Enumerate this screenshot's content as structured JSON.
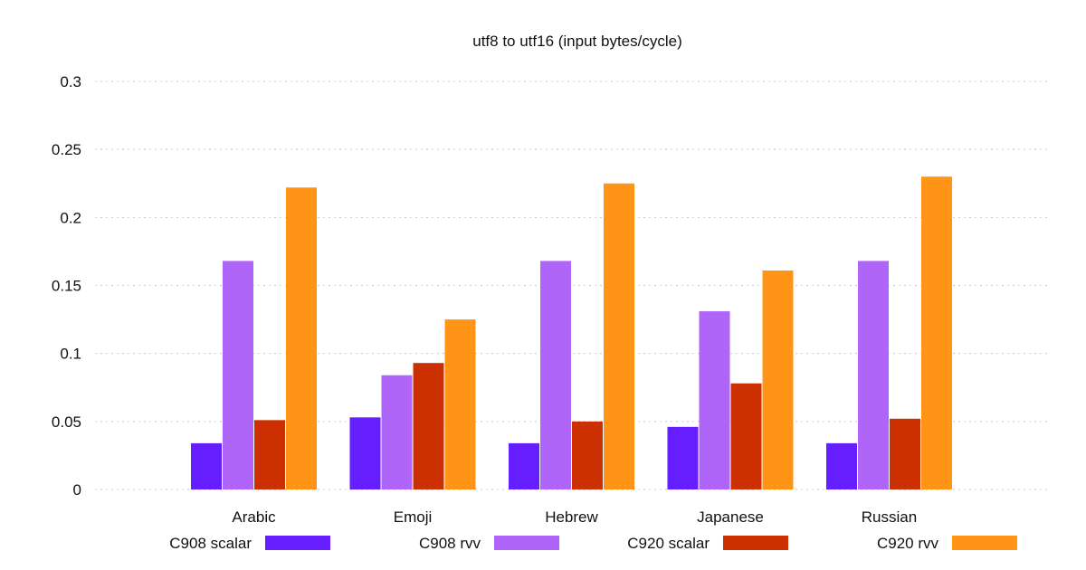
{
  "chart_data": {
    "type": "bar",
    "title": "utf8 to utf16 (input bytes/cycle)",
    "xlabel": "",
    "ylabel": "",
    "categories": [
      "Arabic",
      "Emoji",
      "Hebrew",
      "Japanese",
      "Russian"
    ],
    "series": [
      {
        "name": "C908 scalar",
        "color": "#651fff",
        "values": [
          0.034,
          0.053,
          0.034,
          0.046,
          0.034
        ]
      },
      {
        "name": "C908 rvv",
        "color": "#b065f9",
        "values": [
          0.168,
          0.084,
          0.168,
          0.131,
          0.168
        ]
      },
      {
        "name": "C920 scalar",
        "color": "#cc3000",
        "values": [
          0.051,
          0.093,
          0.05,
          0.078,
          0.052
        ]
      },
      {
        "name": "C920 rvv",
        "color": "#ff9417",
        "values": [
          0.222,
          0.125,
          0.225,
          0.161,
          0.23
        ]
      }
    ],
    "ylim": [
      0,
      0.3
    ],
    "yticks": [
      0,
      0.05,
      0.1,
      0.15,
      0.2,
      0.25,
      0.3
    ],
    "ytick_labels": [
      "0",
      "0.05",
      "0.1",
      "0.15",
      "0.2",
      "0.25",
      "0.3"
    ],
    "grid": true,
    "legend_position": "bottom"
  }
}
